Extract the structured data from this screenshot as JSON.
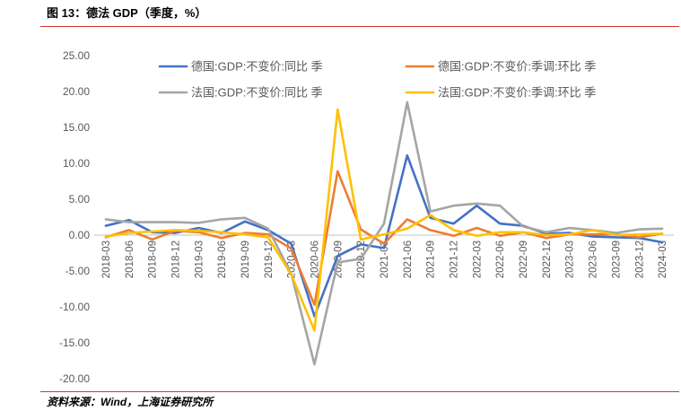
{
  "colors": {
    "rule": "#D9342B",
    "axis": "#BFBFBF",
    "text": "#595959"
  },
  "chart_data": {
    "type": "line",
    "title": "图 13：德法 GDP（季度，%）",
    "source": "资料来源：Wind，上海证券研究所",
    "xlabel": "",
    "ylabel": "",
    "ylim": [
      -20,
      25
    ],
    "yticks": [
      "25.00",
      "20.00",
      "15.00",
      "10.00",
      "5.00",
      "0.00",
      "-5.00",
      "-10.00",
      "-15.00",
      "-20.00"
    ],
    "grid": false,
    "legend": "top",
    "categories": [
      "2018-03",
      "2018-06",
      "2018-09",
      "2018-12",
      "2019-03",
      "2019-06",
      "2019-09",
      "2019-12",
      "2020-03",
      "2020-06",
      "2020-09",
      "2020-12",
      "2021-03",
      "2021-06",
      "2021-09",
      "2021-12",
      "2022-03",
      "2022-06",
      "2022-09",
      "2022-12",
      "2023-03",
      "2023-06",
      "2023-09",
      "2023-12",
      "2024-03"
    ],
    "series": [
      {
        "name": "德国:GDP:不变价:同比 季",
        "color": "#4472C4",
        "values": [
          1.3,
          2.1,
          0.4,
          0.3,
          1.0,
          0.3,
          1.9,
          0.7,
          -1.2,
          -11.3,
          -2.9,
          -1.3,
          -1.8,
          11.1,
          2.4,
          1.6,
          4.1,
          1.6,
          1.3,
          0.2,
          0.3,
          -0.2,
          -0.3,
          -0.4,
          -1.0
        ]
      },
      {
        "name": "德国:GDP:不变价:季调:环比 季",
        "color": "#ED7D31",
        "values": [
          -0.3,
          0.7,
          -0.6,
          0.6,
          0.4,
          -0.4,
          0.3,
          0.1,
          -1.9,
          -9.7,
          8.9,
          0.8,
          -1.2,
          2.2,
          0.7,
          -0.1,
          1.0,
          -0.1,
          0.4,
          -0.4,
          0.1,
          0.1,
          0.1,
          -0.3,
          0.2
        ]
      },
      {
        "name": "法国:GDP:不变价:同比 季",
        "color": "#A5A5A5",
        "values": [
          2.2,
          1.8,
          1.8,
          1.8,
          1.7,
          2.2,
          2.4,
          0.9,
          -5.4,
          -18.0,
          -3.8,
          -3.3,
          1.6,
          18.5,
          3.3,
          4.1,
          4.4,
          4.1,
          1.2,
          0.4,
          1.0,
          0.7,
          0.3,
          0.8,
          0.9
        ]
      },
      {
        "name": "法国:GDP:不变价:季调:环比 季",
        "color": "#FFC000",
        "values": [
          -0.2,
          0.3,
          0.5,
          0.7,
          0.6,
          0.4,
          0.1,
          -0.3,
          -5.5,
          -13.3,
          17.5,
          -0.6,
          0.1,
          0.9,
          2.8,
          0.7,
          -0.1,
          0.4,
          0.4,
          0.0,
          0.1,
          0.7,
          0.0,
          0.1,
          0.2
        ]
      }
    ]
  }
}
